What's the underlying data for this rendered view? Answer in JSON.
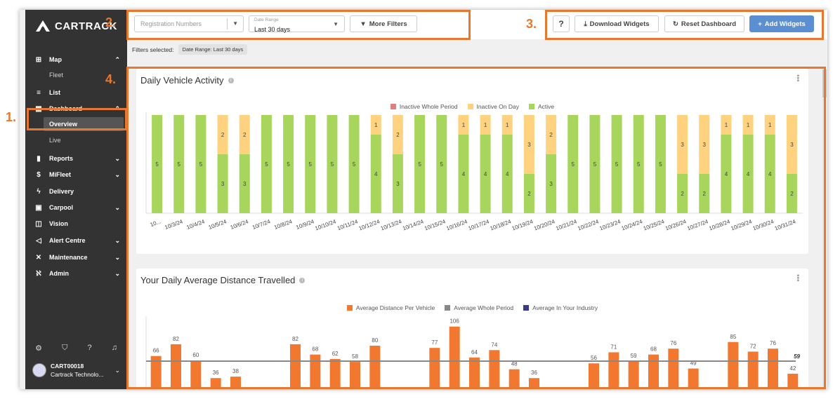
{
  "app": {
    "brand": "CARTRACK"
  },
  "sidebar": {
    "items": [
      {
        "key": "map",
        "label": "Map",
        "icon": "map-icon",
        "glyph": "⊞",
        "chevron": "⌃"
      },
      {
        "key": "fleet",
        "label": "Fleet",
        "sub": true
      },
      {
        "key": "list",
        "label": "List",
        "icon": "list-icon",
        "glyph": "≡"
      },
      {
        "key": "dashboard",
        "label": "Dashboard",
        "icon": "dashboard-icon",
        "glyph": "▦",
        "chevron": "⌃"
      },
      {
        "key": "overview",
        "label": "Overview",
        "sub": true,
        "active": true
      },
      {
        "key": "live",
        "label": "Live",
        "sub": true
      },
      {
        "key": "reports",
        "label": "Reports",
        "icon": "bar-chart-icon",
        "glyph": "▮",
        "chevron": "⌄"
      },
      {
        "key": "mifleet",
        "label": "MiFleet",
        "icon": "dollar-icon",
        "glyph": "$",
        "chevron": "⌄"
      },
      {
        "key": "delivery",
        "label": "Delivery",
        "icon": "lightning-icon",
        "glyph": "ϟ"
      },
      {
        "key": "carpool",
        "label": "Carpool",
        "icon": "calendar-icon",
        "glyph": "▣",
        "chevron": "⌄"
      },
      {
        "key": "vision",
        "label": "Vision",
        "icon": "camera-icon",
        "glyph": "◫"
      },
      {
        "key": "alert",
        "label": "Alert Centre",
        "icon": "megaphone-icon",
        "glyph": "◁",
        "chevron": "⌄"
      },
      {
        "key": "maintenance",
        "label": "Maintenance",
        "icon": "tools-icon",
        "glyph": "✕",
        "chevron": "⌄"
      },
      {
        "key": "admin",
        "label": "Admin",
        "icon": "users-icon",
        "glyph": "ℵ",
        "chevron": "⌄"
      }
    ],
    "bottom_icons": [
      "settings-icon",
      "shield-icon",
      "help-icon",
      "bell-icon"
    ],
    "user": {
      "id": "CART00018",
      "company": "Cartrack Technolo..."
    }
  },
  "toolbar": {
    "registration_placeholder": "Registration Numbers",
    "date_range_label": "Date Range",
    "date_range_value": "Last 30 days",
    "more_filters": "More Filters",
    "help": "?",
    "download": "Download Widgets",
    "reset": "Reset Dashboard",
    "add": "Add Widgets"
  },
  "filters": {
    "label": "Filters selected:",
    "chips": [
      "Date Range: Last 30 days"
    ]
  },
  "annotations": [
    "1.",
    "2.",
    "3.",
    "4."
  ],
  "colors": {
    "green": "#a8d65c",
    "yellow": "#ffd27f",
    "red": "#e57f7f",
    "orange": "#f2782f",
    "grey": "#888888",
    "navy": "#3a3a8c",
    "accent": "#5b8fd1",
    "highlight": "#e8782f"
  },
  "widgets": {
    "activity": {
      "title": "Daily Vehicle Activity"
    },
    "distance": {
      "title": "Your Daily Average Distance Travelled"
    }
  },
  "chart_data": [
    {
      "type": "bar",
      "stacked": true,
      "title": "Daily Vehicle Activity",
      "categories": [
        "10...",
        "10/3/24",
        "10/4/24",
        "10/5/24",
        "10/6/24",
        "10/7/24",
        "10/8/24",
        "10/9/24",
        "10/10/24",
        "10/11/24",
        "10/12/24",
        "10/13/24",
        "10/14/24",
        "10/15/24",
        "10/16/24",
        "10/17/24",
        "10/18/24",
        "10/19/24",
        "10/20/24",
        "10/21/24",
        "10/22/24",
        "10/23/24",
        "10/24/24",
        "10/25/24",
        "10/26/24",
        "10/27/24",
        "10/28/24",
        "10/29/24",
        "10/30/24",
        "10/31/24"
      ],
      "series": [
        {
          "name": "Inactive Whole Period",
          "color": "#e57f7f",
          "values": [
            0,
            0,
            0,
            0,
            0,
            0,
            0,
            0,
            0,
            0,
            0,
            0,
            0,
            0,
            0,
            0,
            0,
            0,
            0,
            0,
            0,
            0,
            0,
            0,
            0,
            0,
            0,
            0,
            0,
            0
          ]
        },
        {
          "name": "Inactive On Day",
          "color": "#ffd27f",
          "values": [
            0,
            0,
            0,
            2,
            2,
            0,
            0,
            0,
            0,
            0,
            1,
            2,
            0,
            0,
            1,
            1,
            1,
            3,
            2,
            0,
            0,
            0,
            0,
            0,
            3,
            3,
            1,
            1,
            1,
            3
          ]
        },
        {
          "name": "Active",
          "color": "#a8d65c",
          "values": [
            5,
            5,
            5,
            3,
            3,
            5,
            5,
            5,
            5,
            5,
            4,
            3,
            5,
            5,
            4,
            4,
            4,
            2,
            3,
            5,
            5,
            5,
            5,
            5,
            2,
            2,
            4,
            4,
            4,
            2
          ]
        }
      ],
      "ylim": [
        0,
        5
      ],
      "legend": "top-center"
    },
    {
      "type": "bar",
      "title": "Your Daily Average Distance Travelled",
      "series": [
        {
          "name": "Average Distance Per Vehicle",
          "color": "#f2782f",
          "values": [
            66,
            82,
            60,
            36,
            38,
            null,
            null,
            82,
            68,
            62,
            58,
            80,
            null,
            null,
            77,
            106,
            64,
            74,
            48,
            36,
            null,
            null,
            56,
            71,
            59,
            68,
            76,
            49,
            null,
            85,
            72,
            76,
            42
          ]
        },
        {
          "name": "Average Whole Period",
          "color": "#888888",
          "value": 59
        },
        {
          "name": "Average In Your Industry",
          "color": "#3a3a8c"
        }
      ],
      "ylim": [
        0,
        120
      ],
      "legend": "top-center"
    }
  ]
}
